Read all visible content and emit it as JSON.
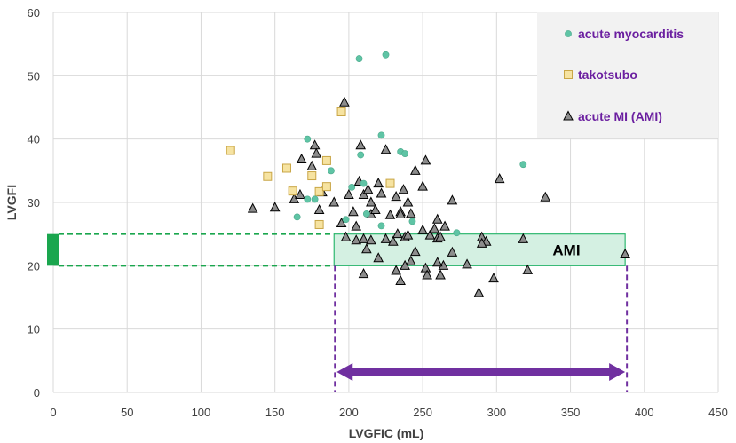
{
  "chart_data": {
    "type": "scatter",
    "title": "",
    "xlabel": "LVGFIC (mL)",
    "ylabel": "LVGFI",
    "xlim": [
      0,
      450
    ],
    "ylim": [
      0,
      60
    ],
    "xticks": [
      0,
      50,
      100,
      150,
      200,
      250,
      300,
      350,
      400,
      450
    ],
    "yticks": [
      0,
      10,
      20,
      30,
      40,
      50,
      60
    ],
    "grid": true,
    "legend_position": "top-right",
    "series": [
      {
        "name": "acute myocarditis",
        "marker": "circle",
        "color": "#5fc4a5",
        "points": [
          [
            207,
            52.7
          ],
          [
            225,
            53.3
          ],
          [
            172,
            40
          ],
          [
            208,
            37.5
          ],
          [
            222,
            40.6
          ],
          [
            235,
            38
          ],
          [
            238,
            37.7
          ],
          [
            318,
            36
          ],
          [
            188,
            35
          ],
          [
            210,
            33
          ],
          [
            202,
            32.4
          ],
          [
            172,
            30.5
          ],
          [
            177,
            30.5
          ],
          [
            165,
            27.7
          ],
          [
            212,
            28.2
          ],
          [
            198,
            27.3
          ],
          [
            243,
            27
          ],
          [
            222,
            26.3
          ],
          [
            273,
            25.2
          ]
        ]
      },
      {
        "name": "takotsubo",
        "marker": "square",
        "color": "#f6e3a1",
        "points": [
          [
            120,
            38.2
          ],
          [
            145,
            34.1
          ],
          [
            158,
            35.4
          ],
          [
            175,
            34.2
          ],
          [
            185,
            36.6
          ],
          [
            195,
            44.3
          ],
          [
            162,
            31.8
          ],
          [
            180,
            31.7
          ],
          [
            185,
            32.5
          ],
          [
            228,
            33
          ],
          [
            180,
            26.5
          ]
        ]
      },
      {
        "name": "acute MI (AMI)",
        "marker": "triangle",
        "color": "#8c8c8c",
        "points": [
          [
            197,
            45.8
          ],
          [
            135,
            29
          ],
          [
            150,
            29.2
          ],
          [
            163,
            30.5
          ],
          [
            167,
            31.2
          ],
          [
            168,
            36.8
          ],
          [
            175,
            35.7
          ],
          [
            177,
            39
          ],
          [
            178,
            37.7
          ],
          [
            180,
            28.8
          ],
          [
            182,
            31.6
          ],
          [
            190,
            30
          ],
          [
            195,
            26.7
          ],
          [
            200,
            31.2
          ],
          [
            203,
            28.5
          ],
          [
            205,
            26.2
          ],
          [
            207,
            33.3
          ],
          [
            208,
            39
          ],
          [
            210,
            31.2
          ],
          [
            213,
            32
          ],
          [
            215,
            30
          ],
          [
            215,
            28.1
          ],
          [
            218,
            28.8
          ],
          [
            220,
            33
          ],
          [
            222,
            31.4
          ],
          [
            225,
            38.3
          ],
          [
            228,
            28
          ],
          [
            232,
            30.9
          ],
          [
            235,
            28.5
          ],
          [
            235,
            28.1
          ],
          [
            237,
            32
          ],
          [
            240,
            30
          ],
          [
            242,
            28.2
          ],
          [
            245,
            35
          ],
          [
            250,
            32.5
          ],
          [
            252,
            36.6
          ],
          [
            260,
            27.3
          ],
          [
            265,
            26.2
          ],
          [
            270,
            30.3
          ],
          [
            290,
            24.5
          ],
          [
            293,
            23.8
          ],
          [
            302,
            33.7
          ],
          [
            318,
            24.2
          ],
          [
            333,
            30.8
          ],
          [
            387,
            21.8
          ],
          [
            198,
            24.5
          ],
          [
            205,
            24
          ],
          [
            210,
            24.2
          ],
          [
            212,
            22.6
          ],
          [
            215,
            24
          ],
          [
            220,
            21.2
          ],
          [
            225,
            24.2
          ],
          [
            230,
            23.8
          ],
          [
            233,
            25
          ],
          [
            238,
            24.5
          ],
          [
            240,
            24.8
          ],
          [
            242,
            20.7
          ],
          [
            245,
            22.2
          ],
          [
            250,
            25.6
          ],
          [
            255,
            24.8
          ],
          [
            258,
            25.8
          ],
          [
            260,
            24.3
          ],
          [
            262,
            24.5
          ],
          [
            264,
            20
          ],
          [
            270,
            22.1
          ],
          [
            232,
            19.2
          ],
          [
            238,
            20
          ],
          [
            210,
            18.7
          ],
          [
            235,
            17.6
          ],
          [
            252,
            19.6
          ],
          [
            253,
            18.5
          ],
          [
            260,
            20.5
          ],
          [
            262,
            18.5
          ],
          [
            280,
            20.2
          ],
          [
            290,
            23.5
          ],
          [
            298,
            18
          ],
          [
            288,
            15.7
          ],
          [
            321,
            19.3
          ]
        ]
      }
    ],
    "annotations": {
      "ami_band": {
        "label": "AMI",
        "x_range": [
          190,
          387
        ],
        "y_range": [
          20,
          25
        ]
      },
      "y_range_marker": {
        "y_range": [
          20,
          25
        ]
      },
      "x_range_arrow": {
        "x_range": [
          190,
          387
        ]
      }
    }
  },
  "colors": {
    "myocarditis": "#5fc4a5",
    "takotsubo_fill": "#f6e3a1",
    "takotsubo_edge": "#c9a646",
    "ami_fill": "#8c8c8c",
    "band_fill": "#d4f0e2",
    "band_edge": "#2eb870",
    "dash_green": "#1aa64e",
    "purple": "#7030a0",
    "legend_bg": "#f2f2f2",
    "grid": "#d9d9d9"
  }
}
